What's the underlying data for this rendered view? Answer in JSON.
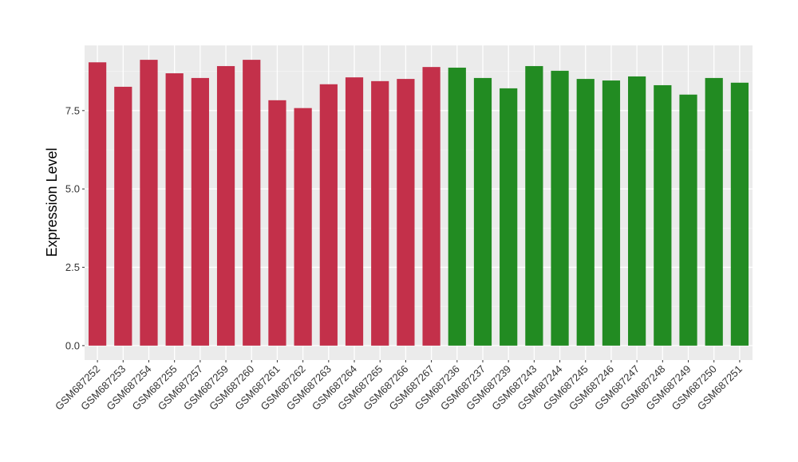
{
  "chart_data": {
    "type": "bar",
    "title": "",
    "xlabel": "",
    "ylabel": "Expression Level",
    "ylim": [
      -0.46,
      9.58
    ],
    "yticks": [
      0.0,
      2.5,
      5.0,
      7.5
    ],
    "ytick_labels": [
      "0.0",
      "2.5",
      "5.0",
      "7.5"
    ],
    "grid": true,
    "background": "#EBEBEB",
    "categories": [
      "GSM687252",
      "GSM687253",
      "GSM687254",
      "GSM687255",
      "GSM687257",
      "GSM687259",
      "GSM687260",
      "GSM687261",
      "GSM687262",
      "GSM687263",
      "GSM687264",
      "GSM687265",
      "GSM687266",
      "GSM687267",
      "GSM687236",
      "GSM687237",
      "GSM687239",
      "GSM687243",
      "GSM687244",
      "GSM687245",
      "GSM687246",
      "GSM687247",
      "GSM687248",
      "GSM687249",
      "GSM687250",
      "GSM687251"
    ],
    "values": [
      9.04,
      8.26,
      9.12,
      8.69,
      8.54,
      8.92,
      9.12,
      7.83,
      7.58,
      8.34,
      8.56,
      8.44,
      8.51,
      8.89,
      8.87,
      8.54,
      8.21,
      8.92,
      8.77,
      8.51,
      8.46,
      8.59,
      8.31,
      8.01,
      8.54,
      8.39
    ],
    "bar_colors": [
      "#C3304A",
      "#C3304A",
      "#C3304A",
      "#C3304A",
      "#C3304A",
      "#C3304A",
      "#C3304A",
      "#C3304A",
      "#C3304A",
      "#C3304A",
      "#C3304A",
      "#C3304A",
      "#C3304A",
      "#C3304A",
      "#228B22",
      "#228B22",
      "#228B22",
      "#228B22",
      "#228B22",
      "#228B22",
      "#228B22",
      "#228B22",
      "#228B22",
      "#228B22",
      "#228B22",
      "#228B22"
    ]
  }
}
